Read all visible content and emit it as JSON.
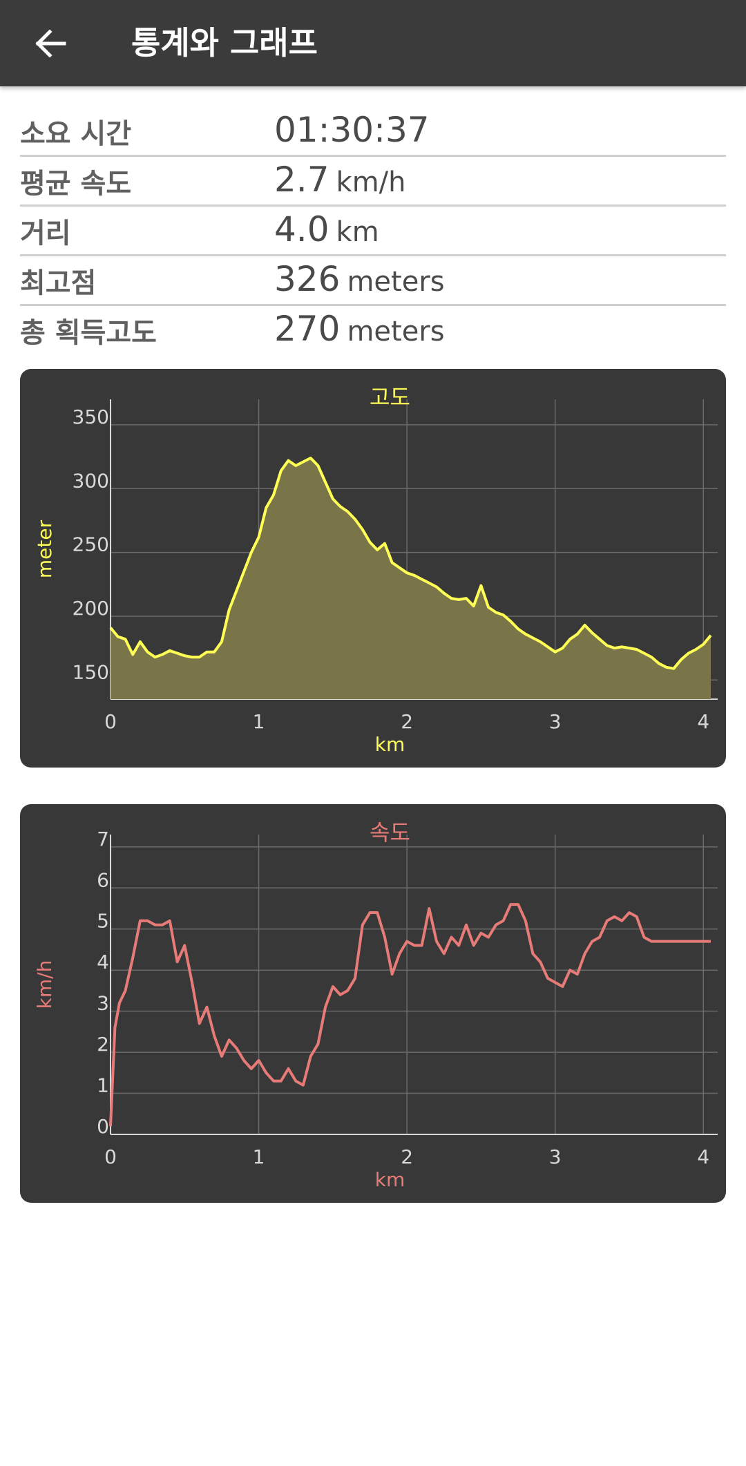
{
  "header": {
    "back_icon": "arrow-left-icon",
    "title": "통계와 그래프"
  },
  "stats": [
    {
      "label": "소요 시간",
      "value": "01:30:37",
      "unit": ""
    },
    {
      "label": "평균 속도",
      "value": "2.7",
      "unit": "km/h"
    },
    {
      "label": "거리",
      "value": "4.0",
      "unit": "km"
    },
    {
      "label": "최고점",
      "value": "326",
      "unit": "meters"
    },
    {
      "label": "총 획득고도",
      "value": "270",
      "unit": "meters"
    }
  ],
  "colors": {
    "header_bg": "#3b3b3b",
    "card_bg": "#383838",
    "altitude": "#ffff55",
    "altitude_fill": "#7a7548",
    "speed": "#e77b77"
  },
  "chart_data": [
    {
      "type": "area",
      "title": "고도",
      "xlabel": "km",
      "ylabel": "meter",
      "xlim": [
        0,
        4.05
      ],
      "ylim": [
        135,
        370
      ],
      "xticks": [
        0,
        1,
        2,
        3,
        4
      ],
      "yticks": [
        150,
        200,
        250,
        300,
        350
      ],
      "grid": true,
      "x": [
        0,
        0.05,
        0.1,
        0.15,
        0.2,
        0.25,
        0.3,
        0.35,
        0.4,
        0.45,
        0.5,
        0.55,
        0.6,
        0.65,
        0.7,
        0.75,
        0.8,
        0.85,
        0.9,
        0.95,
        1.0,
        1.05,
        1.1,
        1.15,
        1.2,
        1.25,
        1.3,
        1.35,
        1.4,
        1.45,
        1.5,
        1.55,
        1.6,
        1.65,
        1.7,
        1.75,
        1.8,
        1.85,
        1.9,
        1.95,
        2.0,
        2.05,
        2.1,
        2.15,
        2.2,
        2.25,
        2.3,
        2.35,
        2.4,
        2.45,
        2.5,
        2.55,
        2.6,
        2.65,
        2.7,
        2.75,
        2.8,
        2.85,
        2.9,
        2.95,
        3.0,
        3.05,
        3.1,
        3.15,
        3.2,
        3.25,
        3.3,
        3.35,
        3.4,
        3.45,
        3.5,
        3.55,
        3.6,
        3.65,
        3.7,
        3.75,
        3.8,
        3.85,
        3.9,
        3.95,
        4.0,
        4.05
      ],
      "values": [
        191,
        184,
        182,
        170,
        180,
        172,
        168,
        170,
        173,
        171,
        169,
        168,
        168,
        172,
        172,
        180,
        205,
        220,
        235,
        250,
        262,
        285,
        295,
        314,
        322,
        318,
        321,
        324,
        318,
        305,
        292,
        286,
        282,
        276,
        268,
        258,
        252,
        257,
        242,
        238,
        234,
        232,
        229,
        226,
        223,
        218,
        214,
        213,
        214,
        208,
        224,
        207,
        203,
        201,
        196,
        190,
        186,
        183,
        180,
        176,
        172,
        175,
        182,
        186,
        193,
        187,
        182,
        177,
        175,
        176,
        175,
        174,
        171,
        168,
        163,
        160,
        159,
        166,
        171,
        174,
        178,
        185
      ]
    },
    {
      "type": "line",
      "title": "속도",
      "xlabel": "km",
      "ylabel": "km/h",
      "xlim": [
        0,
        4.05
      ],
      "ylim": [
        0,
        7.3
      ],
      "xticks": [
        0,
        1,
        2,
        3,
        4
      ],
      "yticks": [
        0,
        1,
        2,
        3,
        4,
        5,
        6,
        7
      ],
      "grid": true,
      "x": [
        0,
        0.03,
        0.06,
        0.1,
        0.15,
        0.2,
        0.25,
        0.3,
        0.35,
        0.4,
        0.45,
        0.5,
        0.55,
        0.6,
        0.65,
        0.7,
        0.75,
        0.8,
        0.85,
        0.9,
        0.95,
        1.0,
        1.05,
        1.1,
        1.15,
        1.2,
        1.25,
        1.3,
        1.35,
        1.4,
        1.45,
        1.5,
        1.55,
        1.6,
        1.65,
        1.7,
        1.75,
        1.8,
        1.85,
        1.9,
        1.95,
        2.0,
        2.05,
        2.1,
        2.15,
        2.2,
        2.25,
        2.3,
        2.35,
        2.4,
        2.45,
        2.5,
        2.55,
        2.6,
        2.65,
        2.7,
        2.75,
        2.8,
        2.85,
        2.9,
        2.95,
        3.0,
        3.05,
        3.1,
        3.15,
        3.2,
        3.25,
        3.3,
        3.35,
        3.4,
        3.45,
        3.5,
        3.55,
        3.6,
        3.65,
        3.7,
        3.75,
        3.8,
        3.85,
        3.9,
        3.95,
        4.0,
        4.05
      ],
      "values": [
        0.2,
        2.6,
        3.2,
        3.5,
        4.3,
        5.2,
        5.2,
        5.1,
        5.1,
        5.2,
        4.2,
        4.6,
        3.7,
        2.7,
        3.1,
        2.4,
        1.9,
        2.3,
        2.1,
        1.8,
        1.6,
        1.8,
        1.5,
        1.3,
        1.3,
        1.6,
        1.3,
        1.2,
        1.9,
        2.2,
        3.1,
        3.6,
        3.4,
        3.5,
        3.8,
        5.1,
        5.4,
        5.4,
        4.8,
        3.9,
        4.4,
        4.7,
        4.6,
        4.6,
        5.5,
        4.7,
        4.4,
        4.8,
        4.6,
        5.1,
        4.6,
        4.9,
        4.8,
        5.1,
        5.2,
        5.6,
        5.6,
        5.2,
        4.4,
        4.2,
        3.8,
        3.7,
        3.6,
        4.0,
        3.9,
        4.4,
        4.7,
        4.8,
        5.2,
        5.3,
        5.2,
        5.4,
        5.3,
        4.8,
        4.7,
        4.7,
        4.7,
        4.7,
        4.7,
        4.7,
        4.7,
        4.7,
        4.7
      ]
    }
  ]
}
